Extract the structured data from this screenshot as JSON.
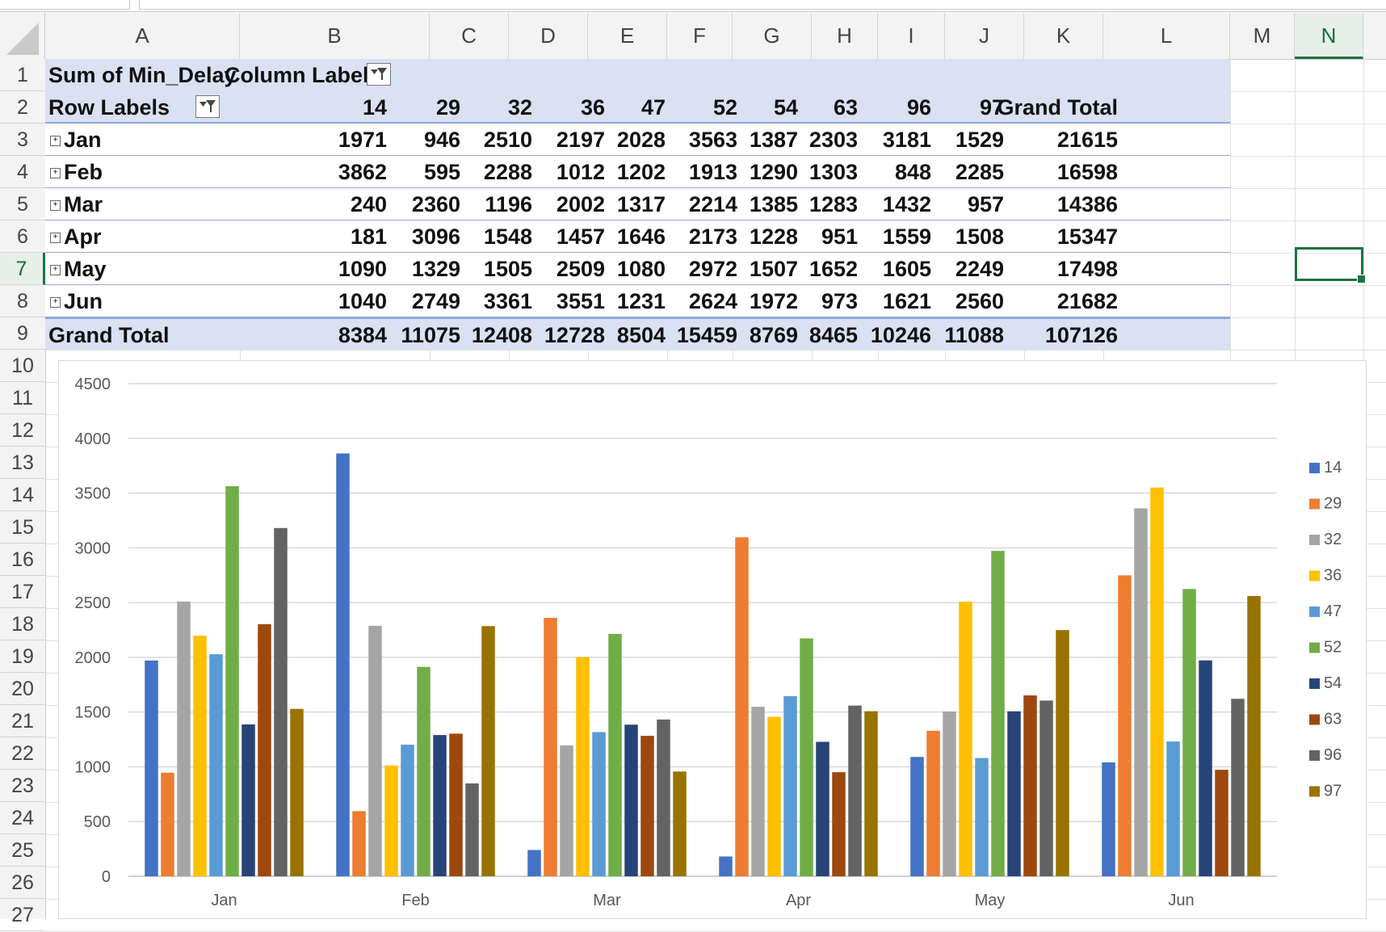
{
  "sheet": {
    "columns": [
      "A",
      "B",
      "C",
      "D",
      "E",
      "F",
      "G",
      "H",
      "I",
      "J",
      "K",
      "L",
      "M",
      "N"
    ],
    "rows": [
      "1",
      "2",
      "3",
      "4",
      "5",
      "6",
      "7",
      "8",
      "9",
      "10",
      "11",
      "12",
      "13",
      "14",
      "15",
      "16",
      "17",
      "18",
      "19",
      "20",
      "21",
      "22",
      "23",
      "24",
      "25",
      "26",
      "27"
    ],
    "active_column": "N",
    "active_row": "7"
  },
  "pivot": {
    "value_field": "Sum of Min_Delay",
    "column_labels": "Column Labels",
    "row_labels": "Row Labels",
    "grand_total_label": "Grand Total",
    "column_keys": [
      "14",
      "29",
      "32",
      "36",
      "47",
      "52",
      "54",
      "63",
      "96",
      "97"
    ],
    "rows": [
      {
        "label": "Jan",
        "values": [
          "1971",
          "946",
          "2510",
          "2197",
          "2028",
          "3563",
          "1387",
          "2303",
          "3181",
          "1529"
        ],
        "total": "21615"
      },
      {
        "label": "Feb",
        "values": [
          "3862",
          "595",
          "2288",
          "1012",
          "1202",
          "1913",
          "1290",
          "1303",
          "848",
          "2285"
        ],
        "total": "16598"
      },
      {
        "label": "Mar",
        "values": [
          "240",
          "2360",
          "1196",
          "2002",
          "1317",
          "2214",
          "1385",
          "1283",
          "1432",
          "957"
        ],
        "total": "14386"
      },
      {
        "label": "Apr",
        "values": [
          "181",
          "3096",
          "1548",
          "1457",
          "1646",
          "2173",
          "1228",
          "951",
          "1559",
          "1508"
        ],
        "total": "15347"
      },
      {
        "label": "May",
        "values": [
          "1090",
          "1329",
          "1505",
          "2509",
          "1080",
          "2972",
          "1507",
          "1652",
          "1605",
          "2249"
        ],
        "total": "17498"
      },
      {
        "label": "Jun",
        "values": [
          "1040",
          "2749",
          "3361",
          "3551",
          "1231",
          "2624",
          "1972",
          "973",
          "1621",
          "2560"
        ],
        "total": "21682"
      }
    ],
    "grand_totals": [
      "8384",
      "11075",
      "12408",
      "12728",
      "8504",
      "15459",
      "8769",
      "8465",
      "10246",
      "11088"
    ],
    "grand_total_all": "107126"
  },
  "chart_data": {
    "type": "bar",
    "categories": [
      "Jan",
      "Feb",
      "Mar",
      "Apr",
      "May",
      "Jun"
    ],
    "ylim": [
      0,
      4500
    ],
    "yticks": [
      "0",
      "500",
      "1000",
      "1500",
      "2000",
      "2500",
      "3000",
      "3500",
      "4000",
      "4500"
    ],
    "legend_position": "right",
    "grid": true,
    "series": [
      {
        "name": "14",
        "color": "#4472c4",
        "values": [
          1971,
          3862,
          240,
          181,
          1090,
          1040
        ]
      },
      {
        "name": "29",
        "color": "#ed7d31",
        "values": [
          946,
          595,
          2360,
          3096,
          1329,
          2749
        ]
      },
      {
        "name": "32",
        "color": "#a5a5a5",
        "values": [
          2510,
          2288,
          1196,
          1548,
          1505,
          3361
        ]
      },
      {
        "name": "36",
        "color": "#ffc000",
        "values": [
          2197,
          1012,
          2002,
          1457,
          2509,
          3551
        ]
      },
      {
        "name": "47",
        "color": "#5b9bd5",
        "values": [
          2028,
          1202,
          1317,
          1646,
          1080,
          1231
        ]
      },
      {
        "name": "52",
        "color": "#70ad47",
        "values": [
          3563,
          1913,
          2214,
          2173,
          2972,
          2624
        ]
      },
      {
        "name": "54",
        "color": "#264478",
        "values": [
          1387,
          1290,
          1385,
          1228,
          1507,
          1972
        ]
      },
      {
        "name": "63",
        "color": "#9e480e",
        "values": [
          2303,
          1303,
          1283,
          951,
          1652,
          973
        ]
      },
      {
        "name": "96",
        "color": "#636363",
        "values": [
          3181,
          848,
          1432,
          1559,
          1605,
          1621
        ]
      },
      {
        "name": "97",
        "color": "#997300",
        "values": [
          1529,
          2285,
          957,
          1508,
          2249,
          2560
        ]
      }
    ]
  }
}
